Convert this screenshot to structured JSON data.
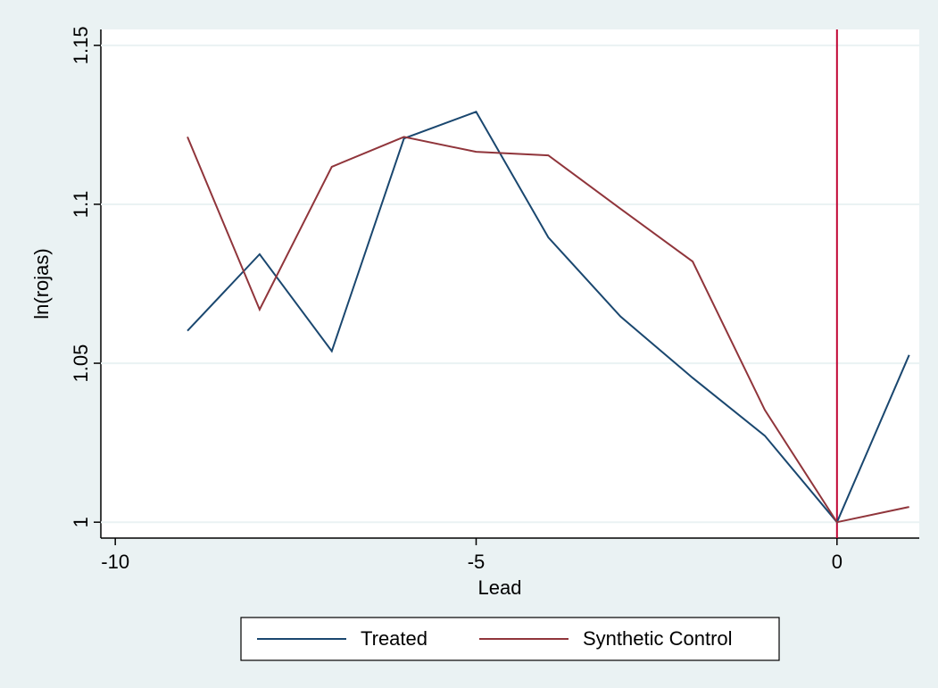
{
  "chart_data": {
    "type": "line",
    "x": [
      -9,
      -8,
      -7,
      -6,
      -5,
      -4,
      -3,
      -2,
      -1,
      0,
      1
    ],
    "series": [
      {
        "name": "Treated",
        "color": "#1a476f",
        "values": [
          1.0602,
          1.0843,
          1.0538,
          1.1207,
          1.1291,
          1.0896,
          1.0647,
          1.0454,
          1.0272,
          1.0,
          1.0526
        ]
      },
      {
        "name": "Synthetic Control",
        "color": "#90353b",
        "values": [
          1.1212,
          1.0669,
          1.1118,
          1.1212,
          1.1165,
          1.1154,
          1.0986,
          1.082,
          1.0353,
          1.0,
          1.0048
        ]
      }
    ],
    "x_label": "Lead",
    "y_label": "ln(rojas)",
    "xlim": [
      -10.2,
      1.14
    ],
    "ylim": [
      0.995,
      1.155
    ],
    "xticks": [
      -10,
      -5,
      0
    ],
    "yticks": [
      1,
      1.05,
      1.1,
      1.15
    ],
    "grid": true,
    "xline": 0,
    "xline_color": "#c10534",
    "legend": "bottom"
  }
}
